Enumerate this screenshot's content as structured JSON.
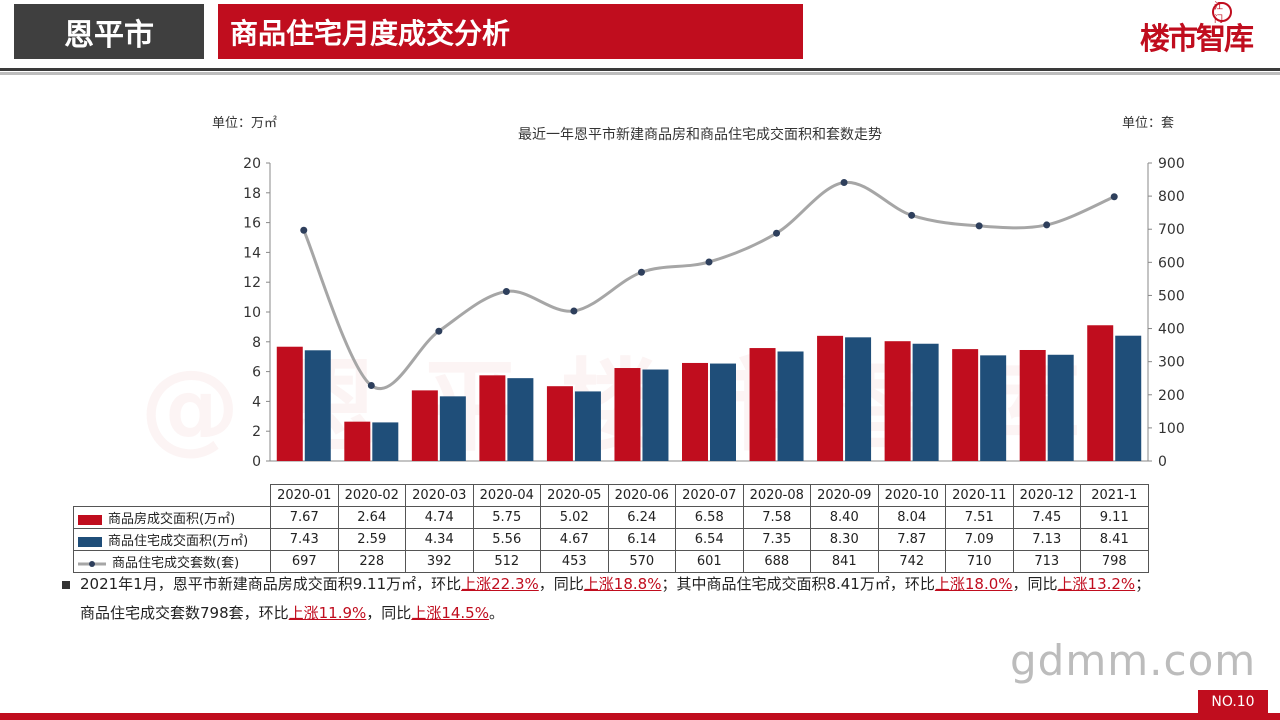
{
  "header": {
    "city": "恩平市",
    "title": "商品住宅月度成交分析",
    "logo_text": "楼市智库",
    "logo_badge": "江门"
  },
  "units": {
    "left": "单位：万㎡",
    "right": "单位：套"
  },
  "chart_data": {
    "type": "bar",
    "title": "最近一年恩平市新建商品房和商品住宅成交面积和套数走势",
    "categories": [
      "2020-01",
      "2020-02",
      "2020-03",
      "2020-04",
      "2020-05",
      "2020-06",
      "2020-07",
      "2020-08",
      "2020-09",
      "2020-10",
      "2020-11",
      "2020-12",
      "2021-1"
    ],
    "series": [
      {
        "name": "商品房成交面积(万㎡)",
        "type": "bar",
        "axis": "left",
        "color": "#c00d1e",
        "values": [
          7.67,
          2.64,
          4.74,
          5.75,
          5.02,
          6.24,
          6.58,
          7.58,
          8.4,
          8.04,
          7.51,
          7.45,
          9.11
        ]
      },
      {
        "name": "商品住宅成交面积(万㎡)",
        "type": "bar",
        "axis": "left",
        "color": "#1f4e79",
        "values": [
          7.43,
          2.59,
          4.34,
          5.56,
          4.67,
          6.14,
          6.54,
          7.35,
          8.3,
          7.87,
          7.09,
          7.13,
          8.41
        ]
      },
      {
        "name": "商品住宅成交套数(套)",
        "type": "line",
        "axis": "right",
        "color": "#a6a6a6",
        "marker_color": "#2e3f5c",
        "values": [
          697,
          228,
          392,
          512,
          453,
          570,
          601,
          688,
          841,
          742,
          710,
          713,
          798
        ]
      }
    ],
    "ylim_left": [
      0,
      20
    ],
    "yticks_left": [
      0,
      2,
      4,
      6,
      8,
      10,
      12,
      14,
      16,
      18,
      20
    ],
    "ylim_right": [
      0,
      900
    ],
    "yticks_right": [
      0,
      100,
      200,
      300,
      400,
      500,
      600,
      700,
      800,
      900
    ],
    "grid": false,
    "legend": "table-below"
  },
  "table": {
    "rows": [
      {
        "label": "商品房成交面积(万㎡)",
        "cells": [
          "7.67",
          "2.64",
          "4.74",
          "5.75",
          "5.02",
          "6.24",
          "6.58",
          "7.58",
          "8.40",
          "8.04",
          "7.51",
          "7.45",
          "9.11"
        ]
      },
      {
        "label": "商品住宅成交面积(万㎡)",
        "cells": [
          "7.43",
          "2.59",
          "4.34",
          "5.56",
          "4.67",
          "6.14",
          "6.54",
          "7.35",
          "8.30",
          "7.87",
          "7.09",
          "7.13",
          "8.41"
        ]
      },
      {
        "label": "商品住宅成交套数(套)",
        "cells": [
          "697",
          "228",
          "392",
          "512",
          "453",
          "570",
          "601",
          "688",
          "841",
          "742",
          "710",
          "713",
          "798"
        ]
      }
    ]
  },
  "summary": {
    "p1": "2021年1月，恩平市新建商品房成交面积9.11万㎡，环比",
    "u1": "上涨22.3%",
    "p2": "，同比",
    "u2": "上涨18.8%",
    "p3": "；其中商品住宅成交面积8.41万㎡，环比",
    "u3": "上涨18.0%",
    "p4": "，同比",
    "u4": "上涨13.2%",
    "p5": "；",
    "p6": "商品住宅成交套数798套，环比",
    "u5": "上涨11.9%",
    "p7": "，同比",
    "u6": "上涨14.5%",
    "p8": "。"
  },
  "watermark": "@恩平楼市智库",
  "site": "gdmm.com",
  "page_no": "NO.10"
}
